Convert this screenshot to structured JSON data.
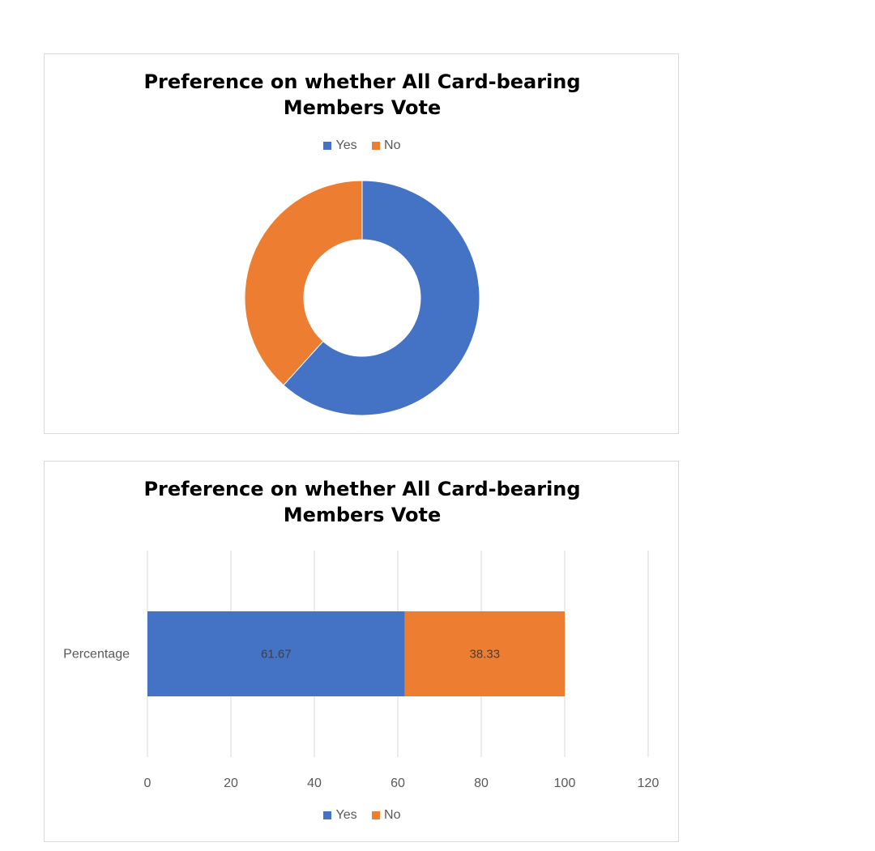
{
  "chart_data": [
    {
      "type": "pie",
      "variant": "donut",
      "title_lines": [
        "Preference on whether All Card-bearing",
        "Members Vote"
      ],
      "legend": [
        "Yes",
        "No"
      ],
      "legend_position": "top",
      "categories": [
        "Yes",
        "No"
      ],
      "values": [
        61.67,
        38.33
      ],
      "colors": [
        "#4472C4",
        "#ED7D31"
      ]
    },
    {
      "type": "bar",
      "orientation": "horizontal",
      "stacked": true,
      "title_lines": [
        "Preference on whether All Card-bearing",
        "Members Vote"
      ],
      "categories": [
        "Percentage"
      ],
      "series": [
        {
          "name": "Yes",
          "values": [
            61.67
          ],
          "color": "#4472C4"
        },
        {
          "name": "No",
          "values": [
            38.33
          ],
          "color": "#ED7D31"
        }
      ],
      "xlim": [
        0,
        120
      ],
      "xticks": [
        "0",
        "20",
        "40",
        "60",
        "80",
        "100",
        "120"
      ],
      "grid": true,
      "legend": [
        "Yes",
        "No"
      ],
      "legend_position": "bottom",
      "data_labels": [
        "61.67",
        "38.33"
      ]
    }
  ]
}
